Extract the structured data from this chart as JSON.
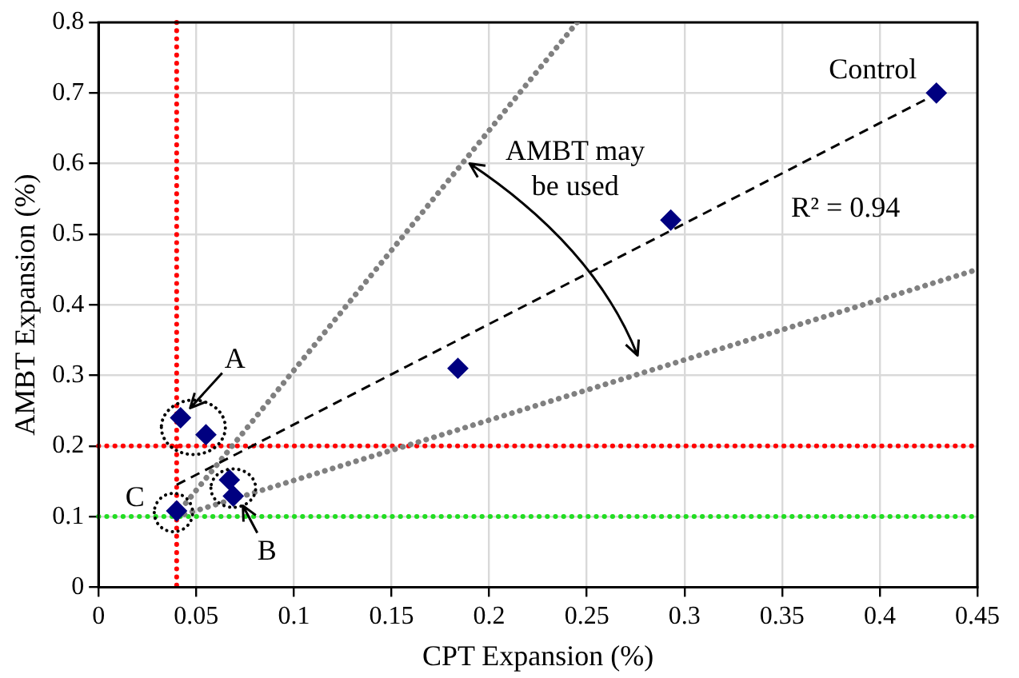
{
  "chart_data": {
    "type": "scatter",
    "xlabel": "CPT Expansion (%)",
    "ylabel": "AMBT Expansion (%)",
    "series": [
      {
        "type": "scatter",
        "color": "#000080",
        "marker": "diamond",
        "x": [
          0.042,
          0.055,
          0.067,
          0.069,
          0.04,
          0.184,
          0.293,
          0.429
        ],
        "values": [
          0.24,
          0.216,
          0.152,
          0.129,
          0.108,
          0.31,
          0.52,
          0.7
        ]
      },
      {
        "type": "line",
        "color": "#000000",
        "line_style": "dashed",
        "marker": "none",
        "x": [
          0.04,
          0.43
        ],
        "values": [
          0.145,
          0.7
        ]
      },
      {
        "type": "line",
        "color": "#808080",
        "line_style": "dotted",
        "marker": "none",
        "x": [
          0.042,
          0.245
        ],
        "values": [
          0.11,
          0.8
        ]
      },
      {
        "type": "line",
        "color": "#808080",
        "line_style": "dotted",
        "marker": "none",
        "x": [
          0.04,
          0.45
        ],
        "values": [
          0.1,
          0.45
        ]
      }
    ],
    "xlim": [
      0,
      0.45
    ],
    "xticks": [
      0,
      0.05,
      0.1,
      0.15,
      0.2,
      0.25,
      0.3,
      0.35,
      0.4,
      0.45
    ],
    "ylim": [
      0,
      0.8
    ],
    "yticks": [
      0,
      0.1,
      0.2,
      0.3,
      0.4,
      0.5,
      0.6,
      0.7,
      0.8
    ],
    "grid": true,
    "legend": false,
    "ref_lines": [
      {
        "axis": "x",
        "value": 0.04,
        "color": "#ff0000",
        "line_style": "dotted"
      },
      {
        "axis": "y",
        "value": 0.2,
        "color": "#ff0000",
        "line_style": "dotted"
      },
      {
        "axis": "y",
        "value": 0.1,
        "color": "#22dd22",
        "line_style": "dotted"
      }
    ],
    "annotations": [
      {
        "text": "A",
        "x": 0.042,
        "y": 0.24
      },
      {
        "text": "B",
        "x": 0.069,
        "y": 0.129
      },
      {
        "text": "C",
        "x": 0.04,
        "y": 0.108
      },
      {
        "text": "Control",
        "x": 0.43,
        "y": 0.7
      },
      {
        "text": "AMBT may be used",
        "x": 0.19,
        "y": 0.6
      },
      "R² = 0.94"
    ]
  }
}
